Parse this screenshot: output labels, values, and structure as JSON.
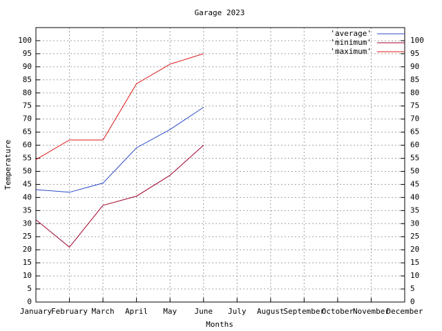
{
  "chart_data": {
    "type": "line",
    "title": "Garage 2023",
    "x_label": "Months",
    "y_label": "Temperature",
    "categories": [
      "January",
      "February",
      "March",
      "April",
      "May",
      "June",
      "July",
      "August",
      "September",
      "October",
      "November",
      "December"
    ],
    "series": [
      {
        "name": "'average'",
        "color": "#2848c8",
        "values": [
          43,
          42,
          45.5,
          59,
          66,
          74.5,
          null,
          null,
          null,
          null,
          null,
          null
        ]
      },
      {
        "name": "'minimum'",
        "color": "#a00028",
        "values": [
          31.5,
          21,
          37,
          40.5,
          48.5,
          60,
          null,
          null,
          null,
          null,
          null,
          null
        ]
      },
      {
        "name": "'maximum'",
        "color": "#dc1414",
        "values": [
          54.5,
          62,
          62,
          83.5,
          91,
          95,
          null,
          null,
          null,
          null,
          null,
          null
        ]
      }
    ],
    "ylim": [
      0,
      105
    ],
    "yticks": [
      0,
      5,
      10,
      15,
      20,
      25,
      30,
      35,
      40,
      45,
      50,
      55,
      60,
      65,
      70,
      75,
      80,
      85,
      90,
      95,
      100
    ],
    "y2lim": [
      0,
      105
    ],
    "y2ticks": [
      0,
      5,
      10,
      15,
      20,
      25,
      30,
      35,
      40,
      45,
      50,
      55,
      60,
      65,
      70,
      75,
      80,
      85,
      90,
      95,
      100
    ],
    "grid": true,
    "legend": "top-right"
  }
}
